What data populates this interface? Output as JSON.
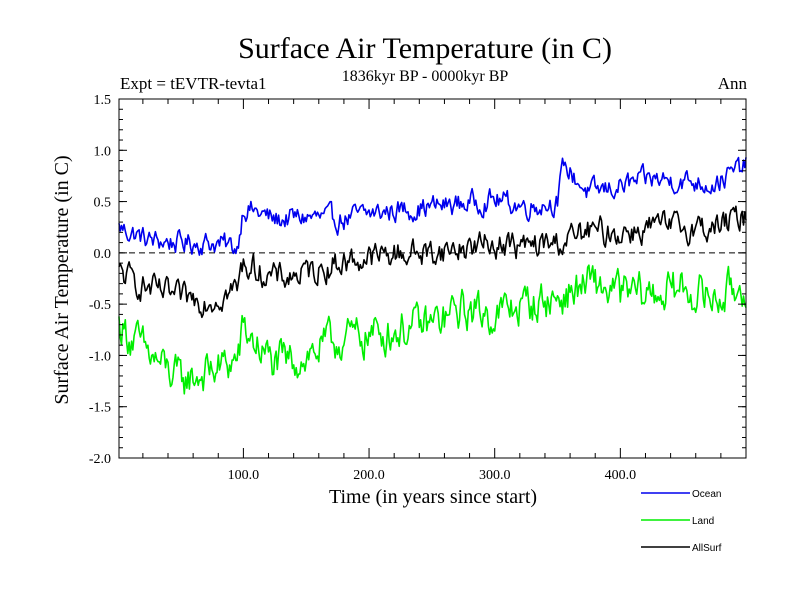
{
  "header": {
    "title": "Surface Air Temperature (in C)",
    "experiment": "Expt = tEVTR-tevta1",
    "period": "1836kyr BP - 0000kyr BP",
    "season": "Ann"
  },
  "chart_data": {
    "type": "line",
    "title": "Surface Air Temperature (in C)",
    "xlabel": "Time (in years since start)",
    "ylabel": "Surface Air Temperature (in C)",
    "xlim": [
      1,
      500
    ],
    "ylim": [
      -2.0,
      1.5
    ],
    "x_ticks": [
      100,
      200,
      300,
      400
    ],
    "x_tick_labels": [
      "100.0",
      "200.0",
      "300.0",
      "400.0"
    ],
    "y_ticks": [
      -2.0,
      -1.5,
      -1.0,
      -0.5,
      0.0,
      0.5,
      1.0,
      1.5
    ],
    "y_tick_labels": [
      "-2.0",
      "-1.5",
      "-1.0",
      "-0.5",
      "0.0",
      "0.5",
      "1.0",
      "1.5"
    ],
    "reference_line": 0.0,
    "legend_position": "bottom-right, outside plot",
    "series": [
      {
        "name": "Ocean",
        "color": "#0000ee",
        "sample_years": [
          1,
          25,
          50,
          75,
          95,
          100,
          125,
          150,
          175,
          200,
          225,
          250,
          275,
          300,
          325,
          350,
          355,
          375,
          400,
          425,
          450,
          475,
          500
        ],
        "values": [
          0.25,
          0.12,
          0.1,
          0.1,
          0.05,
          0.45,
          0.32,
          0.35,
          0.32,
          0.38,
          0.42,
          0.45,
          0.48,
          0.52,
          0.45,
          0.5,
          0.85,
          0.58,
          0.65,
          0.72,
          0.7,
          0.68,
          0.85
        ]
      },
      {
        "name": "Land",
        "color": "#00ee00",
        "sample_years": [
          1,
          25,
          50,
          75,
          95,
          100,
          125,
          150,
          175,
          200,
          225,
          250,
          275,
          300,
          325,
          350,
          375,
          400,
          425,
          450,
          475,
          500
        ],
        "values": [
          -0.7,
          -1.0,
          -1.25,
          -1.15,
          -1.05,
          -0.75,
          -1.1,
          -1.0,
          -0.85,
          -0.8,
          -0.75,
          -0.7,
          -0.55,
          -0.6,
          -0.5,
          -0.45,
          -0.3,
          -0.4,
          -0.4,
          -0.35,
          -0.45,
          -0.3
        ]
      },
      {
        "name": "AllSurf",
        "color": "#000000",
        "sample_years": [
          1,
          25,
          50,
          75,
          95,
          100,
          125,
          150,
          175,
          200,
          225,
          250,
          275,
          300,
          325,
          350,
          375,
          400,
          425,
          450,
          475,
          500
        ],
        "values": [
          -0.2,
          -0.35,
          -0.45,
          -0.45,
          -0.35,
          -0.1,
          -0.25,
          -0.2,
          -0.1,
          -0.05,
          0.0,
          0.0,
          0.05,
          0.1,
          0.05,
          0.1,
          0.2,
          0.2,
          0.25,
          0.25,
          0.25,
          0.35
        ]
      }
    ]
  }
}
